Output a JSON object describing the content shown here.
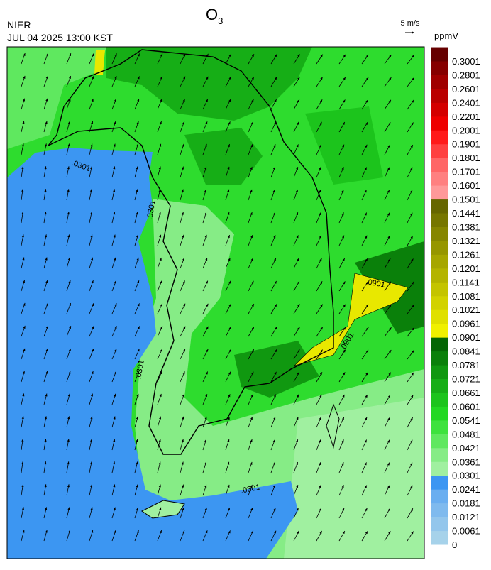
{
  "header": {
    "org": "NIER",
    "datetime": "JUL 04 2025 13:00 KST",
    "title": "O",
    "title_sub": "3",
    "wind_scale": "5 m/s"
  },
  "colorbar": {
    "unit": "ppmV",
    "labels": [
      0,
      0.0061,
      0.0121,
      0.0181,
      0.0241,
      0.0301,
      0.0361,
      0.0421,
      0.0481,
      0.0541,
      0.0601,
      0.0661,
      0.0721,
      0.0781,
      0.0841,
      0.0901,
      0.0961,
      0.1021,
      0.1081,
      0.1141,
      0.1201,
      0.1261,
      0.1321,
      0.1381,
      0.1441,
      0.1501,
      0.1601,
      0.1701,
      0.1801,
      0.1901,
      0.2001,
      0.2201,
      0.2401,
      0.2601,
      0.2801,
      0.3001
    ],
    "colors": [
      "#a6d2ea",
      "#93c6ec",
      "#7fbaee",
      "#6aaef0",
      "#3c96f2",
      "#a0f0a0",
      "#86ec86",
      "#5fe85f",
      "#3de23d",
      "#22d822",
      "#1cc41c",
      "#16ae16",
      "#109810",
      "#0a800a",
      "#046604",
      "#f0f000",
      "#e0e000",
      "#d2d200",
      "#c4c400",
      "#b4b400",
      "#a6a600",
      "#969600",
      "#868600",
      "#767600",
      "#666600",
      "#ff9999",
      "#ff8080",
      "#ff6666",
      "#ff4040",
      "#ff1a1a",
      "#ee0000",
      "#d40000",
      "#ba0000",
      "#a00000",
      "#860000",
      "#660000"
    ]
  },
  "contour_labels": [
    ".0301",
    ".0901",
    ".0301",
    ".0901",
    ".0301",
    ".0301"
  ]
}
